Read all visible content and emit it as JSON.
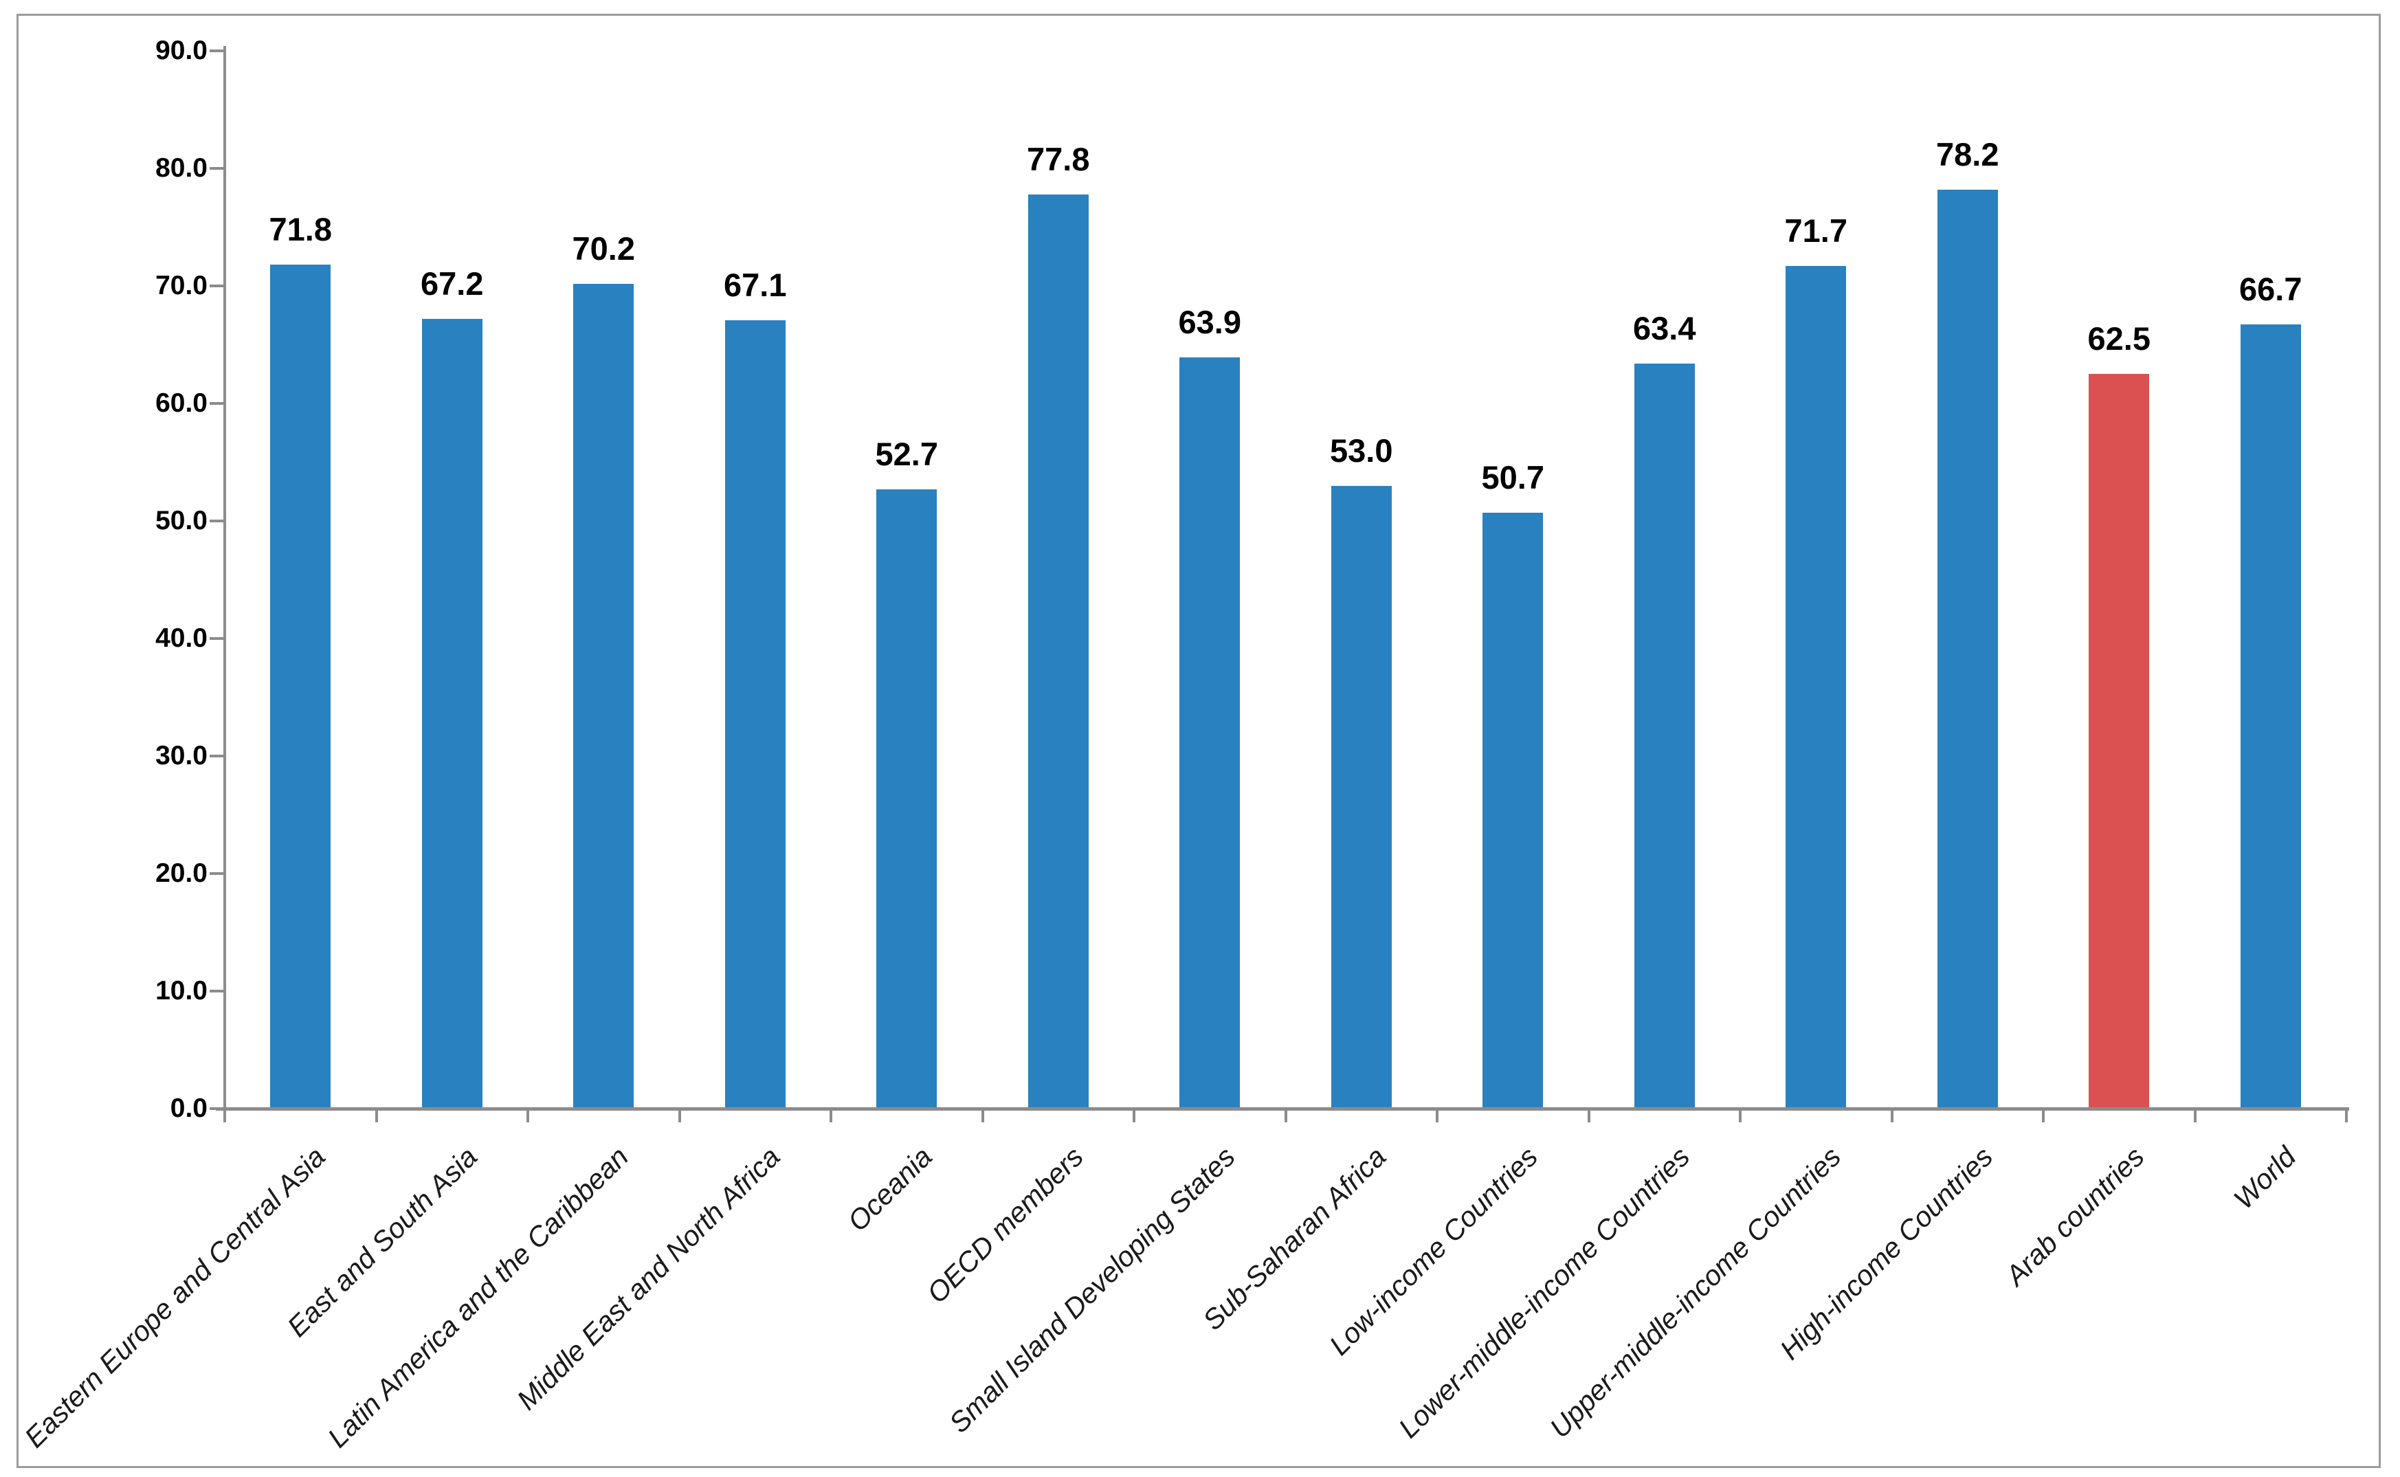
{
  "chart_data": {
    "type": "bar",
    "title": "",
    "xlabel": "",
    "ylabel": "",
    "categories": [
      "Eastern Europe and Central Asia",
      "East and South Asia",
      "Latin America and the Caribbean",
      "Middle East and North Africa",
      "Oceania",
      "OECD members",
      "Small Island Developing States",
      "Sub-Saharan Africa",
      "Low-income Countries",
      "Lower-middle-income Countries",
      "Upper-middle-income Countries",
      "High-income Countries",
      "Arab countries",
      "World"
    ],
    "values": [
      71.8,
      67.2,
      70.2,
      67.1,
      52.7,
      77.8,
      63.9,
      53.0,
      50.7,
      63.4,
      71.7,
      78.2,
      62.5,
      66.7
    ],
    "value_label_format": "one-decimal",
    "ylim": [
      0,
      90
    ],
    "y_tick_labels": [
      "90.0",
      "80.0",
      "70.0",
      "60.0",
      "50.0",
      "40.0",
      "30.0",
      "20.0",
      "10.0",
      "0.0"
    ],
    "grid": false,
    "legend": false,
    "highlight_index": 12,
    "colors": {
      "bar": "#2981bf",
      "highlight": "#db5151",
      "axis": "#8c8c8c",
      "frame": "#9b9b9b",
      "text": "#000000"
    }
  }
}
